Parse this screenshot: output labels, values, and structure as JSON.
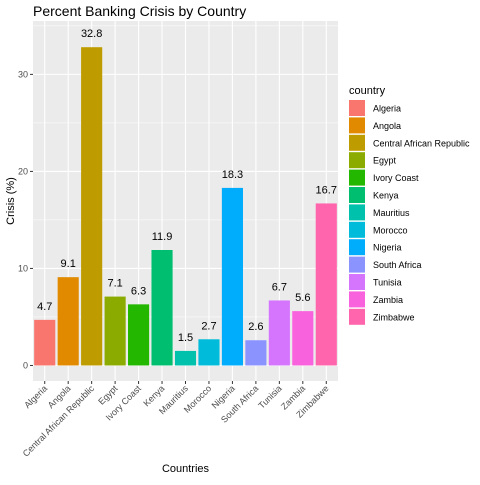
{
  "chart_data": {
    "type": "bar",
    "title": "Percent Banking Crisis by Country",
    "xlabel": "Countries",
    "ylabel": "Crisis (%)",
    "ylim": [
      -1.6,
      35.5
    ],
    "yticks": [
      0,
      10,
      20,
      30
    ],
    "grid": true,
    "legend_position": "right",
    "legend_title": "country",
    "categories": [
      "Algeria",
      "Angola",
      "Central African Republic",
      "Egypt",
      "Ivory Coast",
      "Kenya",
      "Mauritius",
      "Morocco",
      "Nigeria",
      "South Africa",
      "Tunisia",
      "Zambia",
      "Zimbabwe"
    ],
    "values": [
      4.7,
      9.1,
      32.8,
      7.1,
      6.3,
      11.9,
      1.5,
      2.7,
      18.3,
      2.6,
      6.7,
      5.6,
      16.7
    ],
    "value_labels": [
      "4.7",
      "9.1",
      "32.8",
      "7.1",
      "6.3",
      "11.9",
      "1.5",
      "2.7",
      "18.3",
      "2.6",
      "6.7",
      "5.6",
      "16.7"
    ],
    "colors": [
      "#F8766D",
      "#E18A00",
      "#BE9C00",
      "#8CAB00",
      "#24B700",
      "#00BE70",
      "#00C1AB",
      "#00BBDA",
      "#00ACFC",
      "#8B93FF",
      "#D575FE",
      "#F962DD",
      "#FF65AC"
    ]
  }
}
